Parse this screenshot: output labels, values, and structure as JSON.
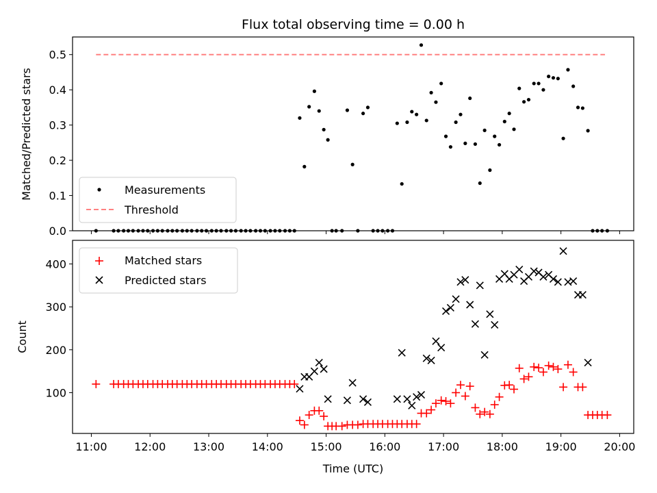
{
  "chart_data": [
    {
      "type": "scatter",
      "title": "Flux total observing time = 0.00 h",
      "ylabel": "Matched/Predicted stars",
      "ylim": [
        0,
        0.55
      ],
      "yticks": [
        0.0,
        0.1,
        0.2,
        0.3,
        0.4,
        0.5
      ],
      "ytick_labels": [
        "0.0",
        "0.1",
        "0.2",
        "0.3",
        "0.4",
        "0.5"
      ],
      "xlim": [
        10.68,
        20.24
      ],
      "legend": {
        "position": "lower-left",
        "entries": [
          "Measurements",
          "Threshold"
        ]
      },
      "threshold": {
        "name": "Threshold",
        "value": 0.5,
        "x_range": [
          11.08,
          19.75
        ],
        "color": "#ff8080"
      },
      "series": [
        {
          "name": "Measurements",
          "marker": "dot",
          "color": "#000000",
          "points": [
            [
              11.08,
              0
            ],
            [
              11.38,
              0
            ],
            [
              11.46,
              0
            ],
            [
              11.55,
              0
            ],
            [
              11.63,
              0
            ],
            [
              11.71,
              0
            ],
            [
              11.8,
              0
            ],
            [
              11.88,
              0
            ],
            [
              11.96,
              0
            ],
            [
              12.05,
              0
            ],
            [
              12.13,
              0
            ],
            [
              12.21,
              0
            ],
            [
              12.3,
              0
            ],
            [
              12.38,
              0
            ],
            [
              12.46,
              0
            ],
            [
              12.55,
              0
            ],
            [
              12.63,
              0
            ],
            [
              12.71,
              0
            ],
            [
              12.8,
              0
            ],
            [
              12.88,
              0
            ],
            [
              12.96,
              0
            ],
            [
              13.05,
              0
            ],
            [
              13.13,
              0
            ],
            [
              13.21,
              0
            ],
            [
              13.3,
              0
            ],
            [
              13.38,
              0
            ],
            [
              13.46,
              0
            ],
            [
              13.55,
              0
            ],
            [
              13.63,
              0
            ],
            [
              13.71,
              0
            ],
            [
              13.8,
              0
            ],
            [
              13.88,
              0
            ],
            [
              13.96,
              0
            ],
            [
              14.05,
              0
            ],
            [
              14.13,
              0
            ],
            [
              14.21,
              0
            ],
            [
              14.3,
              0
            ],
            [
              14.38,
              0
            ],
            [
              14.46,
              0
            ],
            [
              14.55,
              0.32
            ],
            [
              14.63,
              0.182
            ],
            [
              14.71,
              0.352
            ],
            [
              14.8,
              0.396
            ],
            [
              14.88,
              0.34
            ],
            [
              14.96,
              0.287
            ],
            [
              15.03,
              0.258
            ],
            [
              15.1,
              0
            ],
            [
              15.17,
              0
            ],
            [
              15.27,
              0
            ],
            [
              15.36,
              0.342
            ],
            [
              15.45,
              0.188
            ],
            [
              15.54,
              0
            ],
            [
              15.63,
              0.333
            ],
            [
              15.71,
              0.35
            ],
            [
              15.8,
              0
            ],
            [
              15.88,
              0
            ],
            [
              15.96,
              0
            ],
            [
              16.05,
              0
            ],
            [
              16.13,
              0
            ],
            [
              16.21,
              0.305
            ],
            [
              16.29,
              0.133
            ],
            [
              16.38,
              0.308
            ],
            [
              16.46,
              0.338
            ],
            [
              16.54,
              0.33
            ],
            [
              16.62,
              0.527
            ],
            [
              16.71,
              0.313
            ],
            [
              16.79,
              0.392
            ],
            [
              16.87,
              0.365
            ],
            [
              16.96,
              0.418
            ],
            [
              17.04,
              0.268
            ],
            [
              17.12,
              0.238
            ],
            [
              17.21,
              0.308
            ],
            [
              17.29,
              0.33
            ],
            [
              17.37,
              0.248
            ],
            [
              17.45,
              0.376
            ],
            [
              17.54,
              0.246
            ],
            [
              17.62,
              0.135
            ],
            [
              17.7,
              0.285
            ],
            [
              17.79,
              0.172
            ],
            [
              17.87,
              0.268
            ],
            [
              17.95,
              0.244
            ],
            [
              18.04,
              0.31
            ],
            [
              18.12,
              0.333
            ],
            [
              18.2,
              0.288
            ],
            [
              18.29,
              0.404
            ],
            [
              18.37,
              0.366
            ],
            [
              18.45,
              0.372
            ],
            [
              18.54,
              0.418
            ],
            [
              18.62,
              0.418
            ],
            [
              18.7,
              0.4
            ],
            [
              18.79,
              0.438
            ],
            [
              18.87,
              0.434
            ],
            [
              18.95,
              0.432
            ],
            [
              19.04,
              0.262
            ],
            [
              19.12,
              0.457
            ],
            [
              19.21,
              0.41
            ],
            [
              19.29,
              0.35
            ],
            [
              19.37,
              0.348
            ],
            [
              19.46,
              0.284
            ],
            [
              19.54,
              0
            ],
            [
              19.62,
              0
            ],
            [
              19.7,
              0
            ],
            [
              19.79,
              0
            ]
          ]
        }
      ]
    },
    {
      "type": "scatter",
      "xlabel": "Time (UTC)",
      "ylabel": "Count",
      "ylim": [
        5,
        455
      ],
      "yticks": [
        100,
        200,
        300,
        400
      ],
      "ytick_labels": [
        "100",
        "200",
        "300",
        "400"
      ],
      "xlim": [
        10.68,
        20.24
      ],
      "xticks": [
        11,
        12,
        13,
        14,
        15,
        16,
        17,
        18,
        19,
        20
      ],
      "xtick_labels": [
        "11:00",
        "12:00",
        "13:00",
        "14:00",
        "15:00",
        "16:00",
        "17:00",
        "18:00",
        "19:00",
        "20:00"
      ],
      "legend": {
        "position": "upper-left",
        "entries": [
          "Matched stars",
          "Predicted stars"
        ]
      },
      "series": [
        {
          "name": "Matched stars",
          "marker": "plus",
          "color": "#ff0000",
          "points": [
            [
              11.08,
              120
            ],
            [
              11.38,
              120
            ],
            [
              11.46,
              120
            ],
            [
              11.55,
              120
            ],
            [
              11.63,
              120
            ],
            [
              11.71,
              120
            ],
            [
              11.8,
              120
            ],
            [
              11.88,
              120
            ],
            [
              11.96,
              120
            ],
            [
              12.05,
              120
            ],
            [
              12.13,
              120
            ],
            [
              12.21,
              120
            ],
            [
              12.3,
              120
            ],
            [
              12.38,
              120
            ],
            [
              12.46,
              120
            ],
            [
              12.55,
              120
            ],
            [
              12.63,
              120
            ],
            [
              12.71,
              120
            ],
            [
              12.8,
              120
            ],
            [
              12.88,
              120
            ],
            [
              12.96,
              120
            ],
            [
              13.05,
              120
            ],
            [
              13.13,
              120
            ],
            [
              13.21,
              120
            ],
            [
              13.3,
              120
            ],
            [
              13.38,
              120
            ],
            [
              13.46,
              120
            ],
            [
              13.55,
              120
            ],
            [
              13.63,
              120
            ],
            [
              13.71,
              120
            ],
            [
              13.8,
              120
            ],
            [
              13.88,
              120
            ],
            [
              13.96,
              120
            ],
            [
              14.05,
              120
            ],
            [
              14.13,
              120
            ],
            [
              14.21,
              120
            ],
            [
              14.3,
              120
            ],
            [
              14.38,
              120
            ],
            [
              14.46,
              120
            ],
            [
              14.55,
              35
            ],
            [
              14.63,
              25
            ],
            [
              14.71,
              48
            ],
            [
              14.8,
              58
            ],
            [
              14.88,
              58
            ],
            [
              14.96,
              45
            ],
            [
              15.03,
              22
            ],
            [
              15.1,
              22
            ],
            [
              15.17,
              22
            ],
            [
              15.27,
              22
            ],
            [
              15.36,
              25
            ],
            [
              15.45,
              25
            ],
            [
              15.54,
              25
            ],
            [
              15.63,
              27
            ],
            [
              15.71,
              27
            ],
            [
              15.8,
              27
            ],
            [
              15.88,
              27
            ],
            [
              15.96,
              27
            ],
            [
              16.05,
              27
            ],
            [
              16.13,
              27
            ],
            [
              16.21,
              27
            ],
            [
              16.29,
              27
            ],
            [
              16.38,
              27
            ],
            [
              16.46,
              27
            ],
            [
              16.54,
              27
            ],
            [
              16.62,
              52
            ],
            [
              16.71,
              52
            ],
            [
              16.79,
              60
            ],
            [
              16.87,
              75
            ],
            [
              16.96,
              82
            ],
            [
              17.04,
              80
            ],
            [
              17.12,
              75
            ],
            [
              17.21,
              100
            ],
            [
              17.29,
              118
            ],
            [
              17.37,
              92
            ],
            [
              17.45,
              115
            ],
            [
              17.54,
              65
            ],
            [
              17.62,
              50
            ],
            [
              17.7,
              55
            ],
            [
              17.79,
              50
            ],
            [
              17.87,
              72
            ],
            [
              17.95,
              90
            ],
            [
              18.04,
              117
            ],
            [
              18.12,
              118
            ],
            [
              18.2,
              108
            ],
            [
              18.29,
              157
            ],
            [
              18.37,
              132
            ],
            [
              18.45,
              137
            ],
            [
              18.54,
              160
            ],
            [
              18.62,
              158
            ],
            [
              18.7,
              148
            ],
            [
              18.79,
              163
            ],
            [
              18.87,
              160
            ],
            [
              18.95,
              155
            ],
            [
              19.04,
              113
            ],
            [
              19.12,
              165
            ],
            [
              19.21,
              148
            ],
            [
              19.29,
              113
            ],
            [
              19.37,
              113
            ],
            [
              19.46,
              48
            ],
            [
              19.54,
              48
            ],
            [
              19.62,
              48
            ],
            [
              19.7,
              48
            ],
            [
              19.79,
              48
            ]
          ]
        },
        {
          "name": "Predicted stars",
          "marker": "x",
          "color": "#000000",
          "points": [
            [
              14.55,
              109
            ],
            [
              14.63,
              137
            ],
            [
              14.71,
              137
            ],
            [
              14.8,
              150
            ],
            [
              14.88,
              170
            ],
            [
              14.96,
              155
            ],
            [
              15.03,
              85
            ],
            [
              15.36,
              82
            ],
            [
              15.45,
              123
            ],
            [
              15.63,
              85
            ],
            [
              15.71,
              78
            ],
            [
              16.21,
              85
            ],
            [
              16.29,
              193
            ],
            [
              16.38,
              85
            ],
            [
              16.46,
              70
            ],
            [
              16.54,
              90
            ],
            [
              16.62,
              95
            ],
            [
              16.71,
              180
            ],
            [
              16.79,
              175
            ],
            [
              16.87,
              220
            ],
            [
              16.96,
              205
            ],
            [
              17.04,
              290
            ],
            [
              17.12,
              298
            ],
            [
              17.21,
              318
            ],
            [
              17.29,
              358
            ],
            [
              17.37,
              363
            ],
            [
              17.45,
              305
            ],
            [
              17.54,
              260
            ],
            [
              17.62,
              350
            ],
            [
              17.7,
              188
            ],
            [
              17.79,
              283
            ],
            [
              17.87,
              258
            ],
            [
              17.95,
              365
            ],
            [
              18.04,
              377
            ],
            [
              18.12,
              365
            ],
            [
              18.2,
              375
            ],
            [
              18.29,
              387
            ],
            [
              18.37,
              360
            ],
            [
              18.45,
              370
            ],
            [
              18.54,
              383
            ],
            [
              18.62,
              380
            ],
            [
              18.7,
              370
            ],
            [
              18.79,
              375
            ],
            [
              18.87,
              365
            ],
            [
              18.95,
              358
            ],
            [
              19.04,
              430
            ],
            [
              19.12,
              358
            ],
            [
              19.21,
              360
            ],
            [
              19.29,
              328
            ],
            [
              19.37,
              328
            ],
            [
              19.46,
              170
            ]
          ]
        }
      ]
    }
  ]
}
